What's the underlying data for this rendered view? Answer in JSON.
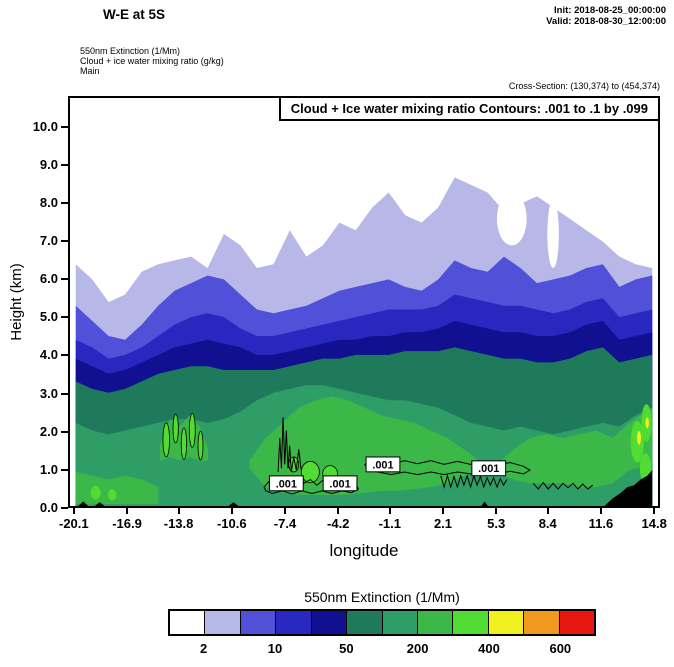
{
  "header": {
    "title": "W-E at 5S",
    "init": "Init: 2018-08-25_00:00:00",
    "valid": "Valid: 2018-08-30_12:00:00",
    "subtitle1": "550nm Extinction  (1/Mm)",
    "subtitle2": "Cloud + ice water mixing ratio   (g/kg)",
    "subtitle3": "Main",
    "cross_section": "Cross-Section: (130,374) to (454,374)"
  },
  "chart_data": {
    "type": "heatmap",
    "title": "W-E at 5S",
    "annotation": "Cloud + Ice water mixing ratio Contours: .001 to .1 by .099",
    "xlabel": "longitude",
    "ylabel": "Height (km)",
    "x_tick_labels": [
      "-20.1",
      "-16.9",
      "-13.8",
      "-10.6",
      "-7.4",
      "-4.2",
      "-1.1",
      "2.1",
      "5.3",
      "8.4",
      "11.6",
      "14.8"
    ],
    "y_tick_labels": [
      "0.0",
      "1.0",
      "2.0",
      "3.0",
      "4.0",
      "5.0",
      "6.0",
      "7.0",
      "8.0",
      "9.0",
      "10.0"
    ],
    "y_tick_values": [
      0,
      1,
      2,
      3,
      4,
      5,
      6,
      7,
      8,
      9,
      10
    ],
    "x_range": [
      -20.45,
      15.15
    ],
    "y_range": [
      0,
      10.8
    ],
    "grid": false,
    "legend_position": "bottom",
    "colors": {
      "white": "#ffffff",
      "lavender": "#b8b8e8",
      "blue": "#5050d8",
      "royal": "#2828c0",
      "navy": "#101090",
      "teal": "#1e7a5a",
      "seagreen": "#2e9e66",
      "green": "#3cb848",
      "bright": "#50dc32",
      "yellow": "#f0f020",
      "orange": "#f09820",
      "red": "#e81810",
      "terrain": "#000000",
      "contour": "#000000"
    },
    "x": [
      -20.1,
      -19.1,
      -18.11,
      -17.11,
      -16.11,
      -15.11,
      -14.12,
      -13.12,
      -12.12,
      -11.13,
      -10.13,
      -9.13,
      -8.13,
      -7.14,
      -6.14,
      -5.14,
      -4.14,
      -3.15,
      -2.15,
      -1.15,
      -0.16,
      0.84,
      1.84,
      2.84,
      3.83,
      4.83,
      5.83,
      6.83,
      7.82,
      8.82,
      9.82,
      10.81,
      11.81,
      12.81,
      13.8,
      14.8
    ],
    "layers": [
      {
        "name": "extinction-2",
        "color": "#b8b8e8",
        "top": [
          6.4,
          6.0,
          5.4,
          5.6,
          6.2,
          6.4,
          6.5,
          6.6,
          6.3,
          7.2,
          6.9,
          6.3,
          6.4,
          7.3,
          6.6,
          6.9,
          7.5,
          7.3,
          7.9,
          8.3,
          7.7,
          7.5,
          7.9,
          8.7,
          8.5,
          8.3,
          7.8,
          8.0,
          8.2,
          7.9,
          7.6,
          7.3,
          7.0,
          6.6,
          6.4,
          6.3
        ]
      },
      {
        "name": "extinction-10",
        "color": "#5050d8",
        "top": [
          5.3,
          4.9,
          4.5,
          4.4,
          4.8,
          5.3,
          5.7,
          5.9,
          6.1,
          6.0,
          5.6,
          5.2,
          5.1,
          5.2,
          5.3,
          5.5,
          5.7,
          5.8,
          5.9,
          6.0,
          5.8,
          5.7,
          6.0,
          6.5,
          6.3,
          6.2,
          6.6,
          6.3,
          5.9,
          6.0,
          6.1,
          6.3,
          6.4,
          5.8,
          6.0,
          6.1
        ]
      },
      {
        "name": "extinction-50",
        "color": "#2828c0",
        "top": [
          4.4,
          4.2,
          3.9,
          4.0,
          4.2,
          4.5,
          4.8,
          5.0,
          5.1,
          5.0,
          4.7,
          4.5,
          4.5,
          4.6,
          4.7,
          4.8,
          4.9,
          5.0,
          5.1,
          5.2,
          5.2,
          5.2,
          5.3,
          5.6,
          5.5,
          5.4,
          5.3,
          5.3,
          5.2,
          5.1,
          5.2,
          5.4,
          5.5,
          5.0,
          5.1,
          5.2
        ]
      },
      {
        "name": "extinction-100",
        "color": "#101090",
        "top": [
          3.9,
          3.7,
          3.5,
          3.6,
          3.8,
          4.0,
          4.2,
          4.3,
          4.4,
          4.3,
          4.2,
          4.0,
          4.0,
          4.1,
          4.2,
          4.3,
          4.4,
          4.4,
          4.5,
          4.5,
          4.6,
          4.6,
          4.7,
          4.9,
          4.8,
          4.7,
          4.6,
          4.6,
          4.5,
          4.5,
          4.6,
          4.8,
          4.9,
          4.4,
          4.5,
          4.6
        ]
      },
      {
        "name": "extinction-200",
        "color": "#1e7a5a",
        "top": [
          3.3,
          3.1,
          3.0,
          3.1,
          3.3,
          3.5,
          3.6,
          3.7,
          3.7,
          3.6,
          3.6,
          3.6,
          3.6,
          3.7,
          3.8,
          3.9,
          3.9,
          4.0,
          4.0,
          4.0,
          4.1,
          4.1,
          4.1,
          4.2,
          4.1,
          4.0,
          3.9,
          3.9,
          3.8,
          3.8,
          3.9,
          4.1,
          4.2,
          3.8,
          3.9,
          4.0
        ]
      },
      {
        "name": "extinction-300",
        "color": "#2e9e66",
        "top": [
          2.2,
          2.0,
          1.9,
          2.0,
          2.1,
          2.2,
          2.3,
          2.3,
          2.2,
          2.3,
          2.5,
          2.8,
          3.0,
          3.1,
          3.2,
          3.2,
          3.1,
          3.0,
          2.9,
          2.8,
          2.8,
          2.7,
          2.6,
          2.4,
          2.2,
          2.1,
          2.0,
          2.1,
          2.0,
          1.9,
          2.0,
          2.1,
          2.2,
          2.1,
          2.4,
          2.6
        ]
      }
    ],
    "band_patches": [
      {
        "name": "green-mid",
        "color": "#3cb848",
        "x": [
          -9.6,
          -8.6,
          -7.6,
          -6.6,
          -5.6,
          -4.6,
          -3.6,
          -2.6,
          -1.6,
          -0.6,
          0.4,
          1.4,
          2.4,
          3.4,
          4.6
        ],
        "top": [
          1.2,
          1.8,
          2.2,
          2.6,
          2.8,
          2.9,
          2.8,
          2.6,
          2.4,
          2.3,
          2.2,
          2.0,
          1.8,
          1.5,
          1.1
        ],
        "bottom": [
          1.0,
          0.5,
          0.35,
          0.3,
          0.3,
          0.3,
          0.3,
          0.35,
          0.4,
          0.4,
          0.45,
          0.5,
          0.6,
          0.8,
          1.0
        ]
      },
      {
        "name": "green-right",
        "color": "#3cb848",
        "x": [
          5.4,
          6.4,
          7.4,
          8.4,
          9.4,
          10.4,
          11.4,
          12.4,
          13.4,
          14.8
        ],
        "top": [
          1.1,
          1.5,
          1.8,
          1.9,
          1.8,
          1.9,
          2.0,
          1.8,
          2.2,
          2.6
        ],
        "bottom": [
          0.9,
          0.7,
          0.6,
          0.6,
          0.6,
          0.5,
          0.5,
          0.6,
          0.95,
          1.1
        ]
      },
      {
        "name": "green-left-strip",
        "color": "#3cb848",
        "x": [
          -20.1,
          -19.1,
          -18.1,
          -17.1,
          -16.1,
          -15.1
        ],
        "top": [
          0.9,
          0.8,
          0.7,
          0.8,
          0.7,
          0.5
        ],
        "bottom": [
          0.05,
          0.05,
          0.05,
          0.05,
          0.05,
          0.05
        ]
      },
      {
        "name": "green-left-cluster",
        "color": "#3cb848",
        "x": [
          -15.0,
          -14.4,
          -13.8,
          -13.2,
          -12.6,
          -12.1
        ],
        "top": [
          1.6,
          2.3,
          2.1,
          2.4,
          2.1,
          1.5
        ],
        "bottom": [
          1.2,
          1.3,
          1.2,
          1.3,
          1.2,
          1.2
        ]
      }
    ],
    "ellipses": [
      {
        "lon": -14.62,
        "km": 1.75,
        "rx": 0.2,
        "ry": 0.45,
        "color": "#50dc32",
        "stroke": "#000000"
      },
      {
        "lon": -14.05,
        "km": 2.05,
        "rx": 0.16,
        "ry": 0.38,
        "color": "#50dc32",
        "stroke": "#000000"
      },
      {
        "lon": -13.55,
        "km": 1.65,
        "rx": 0.16,
        "ry": 0.42,
        "color": "#50dc32",
        "stroke": "#000000"
      },
      {
        "lon": -13.05,
        "km": 2.0,
        "rx": 0.18,
        "ry": 0.45,
        "color": "#50dc32",
        "stroke": "#000000"
      },
      {
        "lon": -12.55,
        "km": 1.6,
        "rx": 0.15,
        "ry": 0.38,
        "color": "#50dc32",
        "stroke": "#000000"
      },
      {
        "lon": -5.9,
        "km": 0.9,
        "rx": 0.55,
        "ry": 0.28,
        "color": "#50dc32",
        "stroke": "#000000"
      },
      {
        "lon": -4.7,
        "km": 0.85,
        "rx": 0.45,
        "ry": 0.22,
        "color": "#50dc32",
        "stroke": "#000000"
      },
      {
        "lon": -6.9,
        "km": 1.1,
        "rx": 0.3,
        "ry": 0.2,
        "color": "#50dc32",
        "stroke": "#000000"
      },
      {
        "lon": 13.9,
        "km": 1.7,
        "rx": 0.4,
        "ry": 0.55,
        "color": "#50dc32",
        "stroke": "none"
      },
      {
        "lon": 14.45,
        "km": 2.2,
        "rx": 0.3,
        "ry": 0.5,
        "color": "#50dc32",
        "stroke": "none"
      },
      {
        "lon": 14.4,
        "km": 1.0,
        "rx": 0.35,
        "ry": 0.4,
        "color": "#50dc32",
        "stroke": "none"
      },
      {
        "lon": -18.9,
        "km": 0.35,
        "rx": 0.3,
        "ry": 0.18,
        "color": "#50dc32",
        "stroke": "none"
      },
      {
        "lon": -17.9,
        "km": 0.3,
        "rx": 0.25,
        "ry": 0.15,
        "color": "#50dc32",
        "stroke": "none"
      },
      {
        "lon": 14.0,
        "km": 1.8,
        "rx": 0.12,
        "ry": 0.18,
        "color": "#f0f020",
        "stroke": "none"
      },
      {
        "lon": 14.5,
        "km": 2.2,
        "rx": 0.1,
        "ry": 0.15,
        "color": "#f0f020",
        "stroke": "none"
      },
      {
        "lon": 6.3,
        "km": 7.6,
        "rx": 0.9,
        "ry": 0.7,
        "color": "#ffffff",
        "stroke": "none"
      },
      {
        "lon": 8.8,
        "km": 7.2,
        "rx": 0.35,
        "ry": 0.9,
        "color": "#ffffff",
        "stroke": "none"
      }
    ],
    "terrain": [
      [
        [
          11.9,
          0
        ],
        [
          12.4,
          0.2
        ],
        [
          12.9,
          0.35
        ],
        [
          13.3,
          0.5
        ],
        [
          13.7,
          0.55
        ],
        [
          14.1,
          0.7
        ],
        [
          14.5,
          0.8
        ],
        [
          14.8,
          0.95
        ],
        [
          14.8,
          0
        ]
      ],
      [
        [
          -19.95,
          0
        ],
        [
          -19.65,
          0.12
        ],
        [
          -19.35,
          0
        ]
      ],
      [
        [
          -18.95,
          0
        ],
        [
          -18.65,
          0.1
        ],
        [
          -18.35,
          0
        ]
      ],
      [
        [
          4.45,
          0
        ],
        [
          4.65,
          0.12
        ],
        [
          4.85,
          0
        ]
      ],
      [
        [
          -10.85,
          0
        ],
        [
          -10.55,
          0.1
        ],
        [
          -10.25,
          0
        ]
      ]
    ],
    "contour_lines": [
      {
        "closed": true,
        "pts": [
          [
            -8.7,
            0.5
          ],
          [
            -8.3,
            0.7
          ],
          [
            -7.9,
            0.55
          ],
          [
            -7.5,
            0.75
          ],
          [
            -7.1,
            0.6
          ],
          [
            -6.7,
            0.75
          ],
          [
            -6.3,
            0.6
          ],
          [
            -5.9,
            0.7
          ],
          [
            -5.5,
            0.55
          ],
          [
            -5.1,
            0.7
          ],
          [
            -4.7,
            0.6
          ],
          [
            -4.3,
            0.72
          ],
          [
            -3.9,
            0.6
          ],
          [
            -3.5,
            0.68
          ],
          [
            -3.1,
            0.55
          ],
          [
            -3.0,
            0.45
          ],
          [
            -3.4,
            0.35
          ],
          [
            -4.0,
            0.4
          ],
          [
            -4.6,
            0.33
          ],
          [
            -5.2,
            0.4
          ],
          [
            -5.8,
            0.33
          ],
          [
            -6.4,
            0.4
          ],
          [
            -7.0,
            0.32
          ],
          [
            -7.6,
            0.4
          ],
          [
            -8.2,
            0.33
          ],
          [
            -8.6,
            0.4
          ]
        ]
      },
      {
        "closed": true,
        "pts": [
          [
            -2.6,
            1.1
          ],
          [
            -1.8,
            1.2
          ],
          [
            -1.0,
            1.1
          ],
          [
            -0.2,
            1.2
          ],
          [
            0.6,
            1.12
          ],
          [
            1.4,
            1.2
          ],
          [
            2.2,
            1.1
          ],
          [
            3.0,
            1.18
          ],
          [
            3.8,
            1.1
          ],
          [
            4.6,
            1.16
          ],
          [
            5.4,
            1.08
          ],
          [
            6.2,
            1.15
          ],
          [
            7.0,
            1.05
          ],
          [
            7.4,
            0.95
          ],
          [
            7.0,
            0.85
          ],
          [
            6.2,
            0.92
          ],
          [
            5.4,
            0.85
          ],
          [
            4.6,
            0.92
          ],
          [
            3.8,
            0.85
          ],
          [
            3.0,
            0.9
          ],
          [
            2.2,
            0.83
          ],
          [
            1.4,
            0.9
          ],
          [
            0.6,
            0.83
          ],
          [
            -0.2,
            0.9
          ],
          [
            -1.0,
            0.83
          ],
          [
            -1.8,
            0.9
          ],
          [
            -2.4,
            0.95
          ]
        ]
      },
      {
        "closed": false,
        "pts": [
          [
            2.0,
            0.8
          ],
          [
            2.2,
            0.5
          ],
          [
            2.4,
            0.8
          ],
          [
            2.6,
            0.5
          ],
          [
            2.8,
            0.78
          ],
          [
            3.0,
            0.5
          ],
          [
            3.2,
            0.8
          ],
          [
            3.4,
            0.55
          ],
          [
            3.6,
            0.8
          ],
          [
            3.8,
            0.5
          ],
          [
            4.0,
            0.8
          ],
          [
            4.2,
            0.55
          ],
          [
            4.4,
            0.78
          ],
          [
            4.6,
            0.5
          ],
          [
            4.8,
            0.75
          ],
          [
            5.0,
            0.55
          ],
          [
            5.2,
            0.75
          ],
          [
            5.4,
            0.5
          ],
          [
            5.6,
            0.72
          ],
          [
            5.8,
            0.55
          ],
          [
            6.0,
            0.7
          ]
        ]
      },
      {
        "closed": false,
        "pts": [
          [
            -7.85,
            0.9
          ],
          [
            -7.75,
            1.8
          ],
          [
            -7.65,
            1.0
          ],
          [
            -7.55,
            2.35
          ],
          [
            -7.45,
            1.1
          ],
          [
            -7.35,
            2.0
          ],
          [
            -7.25,
            1.0
          ],
          [
            -7.15,
            1.6
          ],
          [
            -7.05,
            0.9
          ],
          [
            -6.9,
            1.3
          ],
          [
            -6.75,
            0.95
          ],
          [
            -6.6,
            1.5
          ],
          [
            -6.45,
            0.95
          ]
        ]
      },
      {
        "closed": false,
        "pts": [
          [
            7.6,
            0.6
          ],
          [
            7.9,
            0.45
          ],
          [
            8.2,
            0.62
          ],
          [
            8.5,
            0.45
          ],
          [
            8.8,
            0.6
          ],
          [
            9.1,
            0.45
          ],
          [
            9.4,
            0.6
          ],
          [
            9.7,
            0.48
          ],
          [
            10.0,
            0.6
          ],
          [
            10.3,
            0.45
          ],
          [
            10.6,
            0.58
          ],
          [
            10.9,
            0.45
          ],
          [
            11.2,
            0.55
          ]
        ]
      }
    ],
    "contour_labels": [
      {
        "text": ".001",
        "lon": -7.35,
        "km": 0.6
      },
      {
        "text": ".001",
        "lon": -4.1,
        "km": 0.6
      },
      {
        "text": ".001",
        "lon": -1.5,
        "km": 1.1
      },
      {
        "text": ".001",
        "lon": 4.9,
        "km": 1.0
      }
    ]
  },
  "colorbar": {
    "title": "550nm Extinction  (1/Mm)",
    "colors": [
      "#ffffff",
      "#b8b8e8",
      "#5050d8",
      "#2828c0",
      "#101090",
      "#1e7a5a",
      "#2e9e66",
      "#3cb848",
      "#50dc32",
      "#f0f020",
      "#f09820",
      "#e81810"
    ],
    "tick_labels": [
      "2",
      "10",
      "50",
      "200",
      "400",
      "600"
    ],
    "tick_positions": [
      1,
      3,
      5,
      7,
      9,
      11
    ],
    "segments": 12
  }
}
